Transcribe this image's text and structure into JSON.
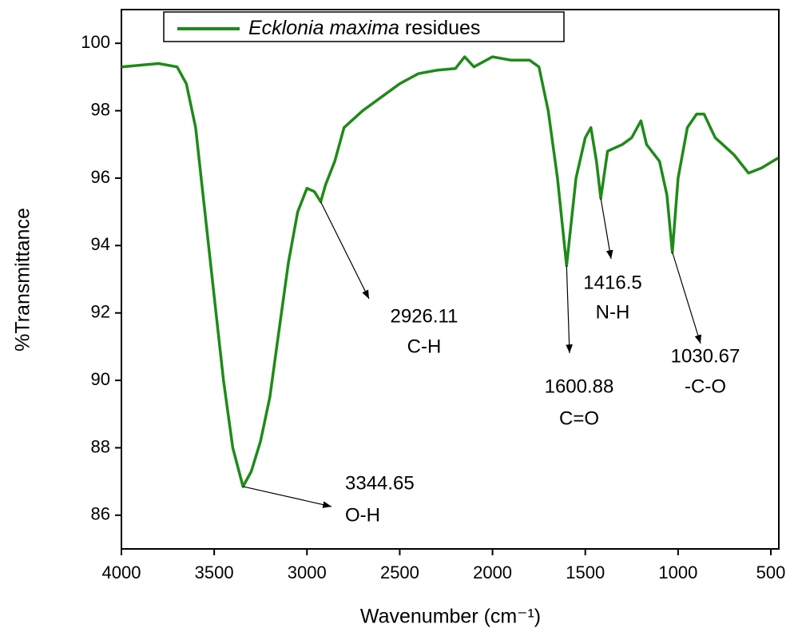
{
  "chart_data": {
    "type": "line",
    "xlabel": "Wavenumber (cm⁻¹)",
    "ylabel": "%Transmittance",
    "xlim": [
      4000,
      457
    ],
    "ylim": [
      85,
      101
    ],
    "xticks": [
      4000,
      3500,
      3000,
      2500,
      2000,
      1500,
      1000,
      500
    ],
    "yticks": [
      86,
      88,
      90,
      92,
      94,
      96,
      98,
      100
    ],
    "legend": "top-left",
    "series": [
      {
        "name": "Ecklonia maxima residues",
        "color": "#1f8a1a",
        "x": [
          4000,
          3900,
          3800,
          3700,
          3650,
          3600,
          3550,
          3500,
          3450,
          3400,
          3344.65,
          3300,
          3250,
          3200,
          3150,
          3100,
          3050,
          3000,
          2960,
          2926.11,
          2900,
          2850,
          2800,
          2700,
          2600,
          2500,
          2400,
          2300,
          2200,
          2150,
          2100,
          2000,
          1900,
          1800,
          1750,
          1700,
          1650,
          1600.88,
          1550,
          1500,
          1470,
          1440,
          1416.5,
          1380,
          1300,
          1250,
          1200,
          1170,
          1100,
          1060,
          1030.67,
          1000,
          950,
          900,
          860,
          800,
          700,
          620,
          550,
          460
        ],
        "values": [
          99.3,
          99.35,
          99.4,
          99.3,
          98.8,
          97.5,
          95.0,
          92.5,
          90.0,
          88.0,
          86.85,
          87.3,
          88.2,
          89.5,
          91.5,
          93.5,
          95.0,
          95.7,
          95.6,
          95.3,
          95.8,
          96.5,
          97.5,
          98.0,
          98.4,
          98.8,
          99.1,
          99.2,
          99.25,
          99.6,
          99.3,
          99.6,
          99.5,
          99.5,
          99.3,
          98.0,
          96.0,
          93.4,
          96.0,
          97.2,
          97.5,
          96.5,
          95.4,
          96.8,
          97.0,
          97.2,
          97.7,
          97.0,
          96.5,
          95.5,
          93.8,
          96.0,
          97.5,
          97.9,
          97.9,
          97.2,
          96.7,
          96.15,
          96.3,
          96.6
        ]
      }
    ],
    "annotations": [
      {
        "x": 3344.65,
        "y": 86.85,
        "label": "O-H"
      },
      {
        "x": 2926.11,
        "y": 95.3,
        "label": "C-H"
      },
      {
        "x": 1600.88,
        "y": 93.4,
        "label": "C=O"
      },
      {
        "x": 1416.5,
        "y": 95.4,
        "label": "N-H"
      },
      {
        "x": 1030.67,
        "y": 93.8,
        "label": "-C-O"
      }
    ]
  }
}
